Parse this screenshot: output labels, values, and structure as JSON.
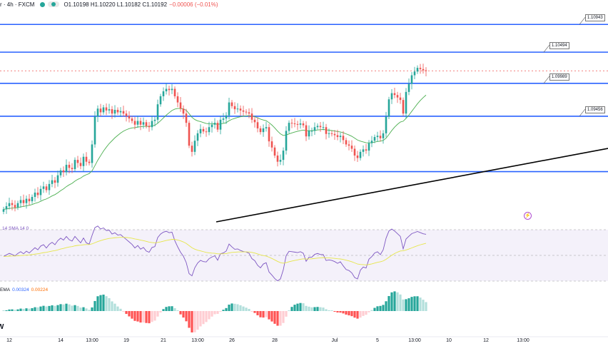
{
  "header": {
    "symbol": "r · 4h · FXCM",
    "ohlc": "O1.10198 H1.10220 L1.10182 C1.10192",
    "change": "−0.00006 (−0.01%)"
  },
  "colors": {
    "up": "#26a69a",
    "down": "#ef5350",
    "level": "#2962ff",
    "trend": "#000000",
    "ma": "#4caf50",
    "rsi": "#7e57c2",
    "rsi_ma": "#e6e64a",
    "macd": "#2962ff",
    "signal": "#ff6d00"
  },
  "icons": {
    "alert": "flash-alert-icon",
    "logo": "tradingview-logo-icon"
  },
  "chart_data": {
    "type": "candlestick",
    "timeframe": "4h",
    "price_levels": [
      {
        "value": 1.10943,
        "label": "1.10943"
      },
      {
        "value": 1.10494,
        "label": "1.10494"
      },
      {
        "value": 1.09989,
        "label": "1.09989"
      },
      {
        "value": 1.09456,
        "label": "1.09456"
      },
      {
        "value": 1.0856,
        "label": ""
      }
    ],
    "dashed_price": 1.10192,
    "trendline": {
      "from": [
        12,
        1.0791
      ],
      "to": [
        184,
        1.0908
      ]
    },
    "ylim": [
      1.077,
      1.112
    ],
    "x_ticks": [
      {
        "i": 2,
        "label": "12"
      },
      {
        "i": 20,
        "label": "14"
      },
      {
        "i": 31,
        "label": "13:00"
      },
      {
        "i": 43,
        "label": "19"
      },
      {
        "i": 56,
        "label": "21"
      },
      {
        "i": 68,
        "label": "13:00"
      },
      {
        "i": 80,
        "label": "26"
      },
      {
        "i": 95,
        "label": "28"
      },
      {
        "i": 116,
        "label": "Jul"
      },
      {
        "i": 131,
        "label": "5"
      },
      {
        "i": 144,
        "label": "13:00"
      },
      {
        "i": 156,
        "label": "10"
      },
      {
        "i": 169,
        "label": "12"
      },
      {
        "i": 182,
        "label": "13:00"
      }
    ],
    "closes": [
      1.0795,
      1.08,
      1.0805,
      1.0802,
      1.0798,
      1.0805,
      1.081,
      1.0805,
      1.0812,
      1.0808,
      1.0815,
      1.0822,
      1.0818,
      1.0828,
      1.0832,
      1.0826,
      1.0836,
      1.0842,
      1.0838,
      1.085,
      1.0858,
      1.0855,
      1.0867,
      1.0862,
      1.086,
      1.0875,
      1.087,
      1.0865,
      1.088,
      1.0872,
      1.087,
      1.09,
      1.0945,
      1.0958,
      1.0952,
      1.096,
      1.0955,
      1.0957,
      1.095,
      1.0956,
      1.0952,
      1.0954,
      1.095,
      1.0946,
      1.0942,
      1.0938,
      1.0932,
      1.0938,
      1.0932,
      1.0936,
      1.093,
      1.0928,
      1.0938,
      1.094,
      1.0965,
      1.0978,
      1.0986,
      1.099,
      1.0988,
      1.099,
      1.0978,
      1.0968,
      1.0958,
      1.095,
      1.0935,
      1.0898,
      1.0888,
      1.0906,
      1.0918,
      1.0925,
      1.0921,
      1.092,
      1.0928,
      1.0932,
      1.0935,
      1.0924,
      1.094,
      1.0942,
      1.0947,
      1.0968,
      1.0962,
      1.0957,
      1.0958,
      1.0955,
      1.0953,
      1.0952,
      1.095,
      1.094,
      1.0936,
      1.0926,
      1.092,
      1.0926,
      1.0928,
      1.0905,
      1.0895,
      1.0882,
      1.0872,
      1.0875,
      1.089,
      1.0922,
      1.0935,
      1.0934,
      1.0933,
      1.0932,
      1.0934,
      1.0931,
      1.0913,
      1.0922,
      1.0922,
      1.0928,
      1.093,
      1.0928,
      1.0928,
      1.0917,
      1.0918,
      1.0917,
      1.0915,
      1.0912,
      1.0914,
      1.0907,
      1.09,
      1.0898,
      1.0893,
      1.0882,
      1.0878,
      1.0888,
      1.0892,
      1.089,
      1.0902,
      1.0906,
      1.0912,
      1.0914,
      1.091,
      1.0918,
      1.0945,
      1.0973,
      1.0983,
      1.098,
      1.0976,
      1.0972,
      1.095,
      1.0985,
      1.0998,
      1.1012,
      1.1018,
      1.1024,
      1.1022,
      1.102,
      1.1019
    ]
  },
  "indicators": {
    "rsi_label": "14 SMA 14 0",
    "macd_label_name": "EMA",
    "macd_value": "0.00324",
    "signal_value": "0.00224"
  }
}
